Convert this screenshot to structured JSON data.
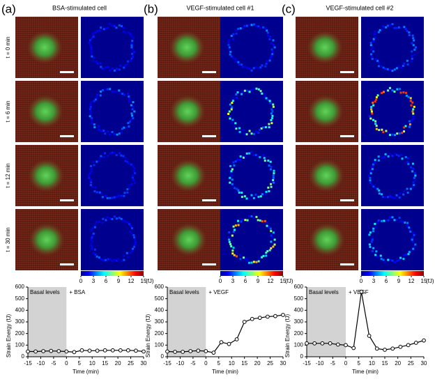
{
  "panels": [
    {
      "label": "(a)",
      "title": "BSA-stimulated cell"
    },
    {
      "label": "(b)",
      "title": "VEGF-stimulated cell #1"
    },
    {
      "label": "(c)",
      "title": "VEGF-stimulated cell #2"
    }
  ],
  "row_labels": [
    "t = 0 min",
    "t = 6 min",
    "t = 12 min",
    "t = 30 min"
  ],
  "colorbar": {
    "ticks": [
      0,
      3,
      6,
      9,
      12,
      15
    ],
    "unit": "(fJ)"
  },
  "chart_data": [
    {
      "type": "line",
      "ylabel": "Strain Energy (fJ)",
      "xlabel": "Time (min)",
      "shade_label": "Basal levels",
      "annotation": "+ BSA",
      "shade_x": [
        -15,
        0
      ],
      "x": [
        -15,
        -12,
        -9,
        -6,
        -3,
        0,
        3,
        6,
        9,
        12,
        15,
        18,
        21,
        24,
        27,
        30
      ],
      "series": [
        {
          "color": "#000000",
          "values": [
            45,
            45,
            48,
            50,
            48,
            45,
            40,
            55,
            52,
            52,
            55,
            55,
            55,
            55,
            52,
            45
          ]
        }
      ],
      "xlim": [
        -15,
        30
      ],
      "ylim": [
        0,
        600
      ],
      "xticks": [
        -15,
        -10,
        -5,
        0,
        5,
        10,
        15,
        20,
        25,
        30
      ],
      "yticks": [
        0,
        100,
        200,
        300,
        400,
        500,
        600
      ]
    },
    {
      "type": "line",
      "ylabel": "Strain Energy (fJ)",
      "xlabel": "Time (min)",
      "shade_label": "Basal levels",
      "annotation": "+ VEGF",
      "shade_x": [
        -15,
        0
      ],
      "x": [
        -15,
        -12,
        -9,
        -6,
        -3,
        0,
        3,
        6,
        9,
        12,
        15,
        18,
        21,
        24,
        27,
        30
      ],
      "series": [
        {
          "color": "#000000",
          "values": [
            45,
            42,
            42,
            48,
            52,
            48,
            35,
            125,
            110,
            150,
            300,
            325,
            335,
            345,
            350,
            360
          ]
        }
      ],
      "xlim": [
        -15,
        30
      ],
      "ylim": [
        0,
        600
      ],
      "xticks": [
        -15,
        -10,
        -5,
        0,
        5,
        10,
        15,
        20,
        25,
        30
      ],
      "yticks": [
        0,
        100,
        200,
        300,
        400,
        500,
        600
      ]
    },
    {
      "type": "line",
      "ylabel": "Strain Energy (fJ)",
      "xlabel": "Time (min)",
      "shade_label": "Basal levels",
      "annotation": "+ VEGF",
      "shade_x": [
        -15,
        0
      ],
      "x": [
        -15,
        -12,
        -9,
        -6,
        -3,
        0,
        3,
        6,
        9,
        12,
        15,
        18,
        21,
        24,
        27,
        30
      ],
      "series": [
        {
          "color": "#000000",
          "values": [
            115,
            115,
            115,
            115,
            105,
            100,
            75,
            560,
            180,
            70,
            60,
            70,
            85,
            100,
            120,
            140
          ]
        }
      ],
      "xlim": [
        -15,
        30
      ],
      "ylim": [
        0,
        600
      ],
      "xticks": [
        -15,
        -10,
        -5,
        0,
        5,
        10,
        15,
        20,
        25,
        30
      ],
      "yticks": [
        0,
        100,
        200,
        300,
        400,
        500,
        600
      ]
    }
  ]
}
